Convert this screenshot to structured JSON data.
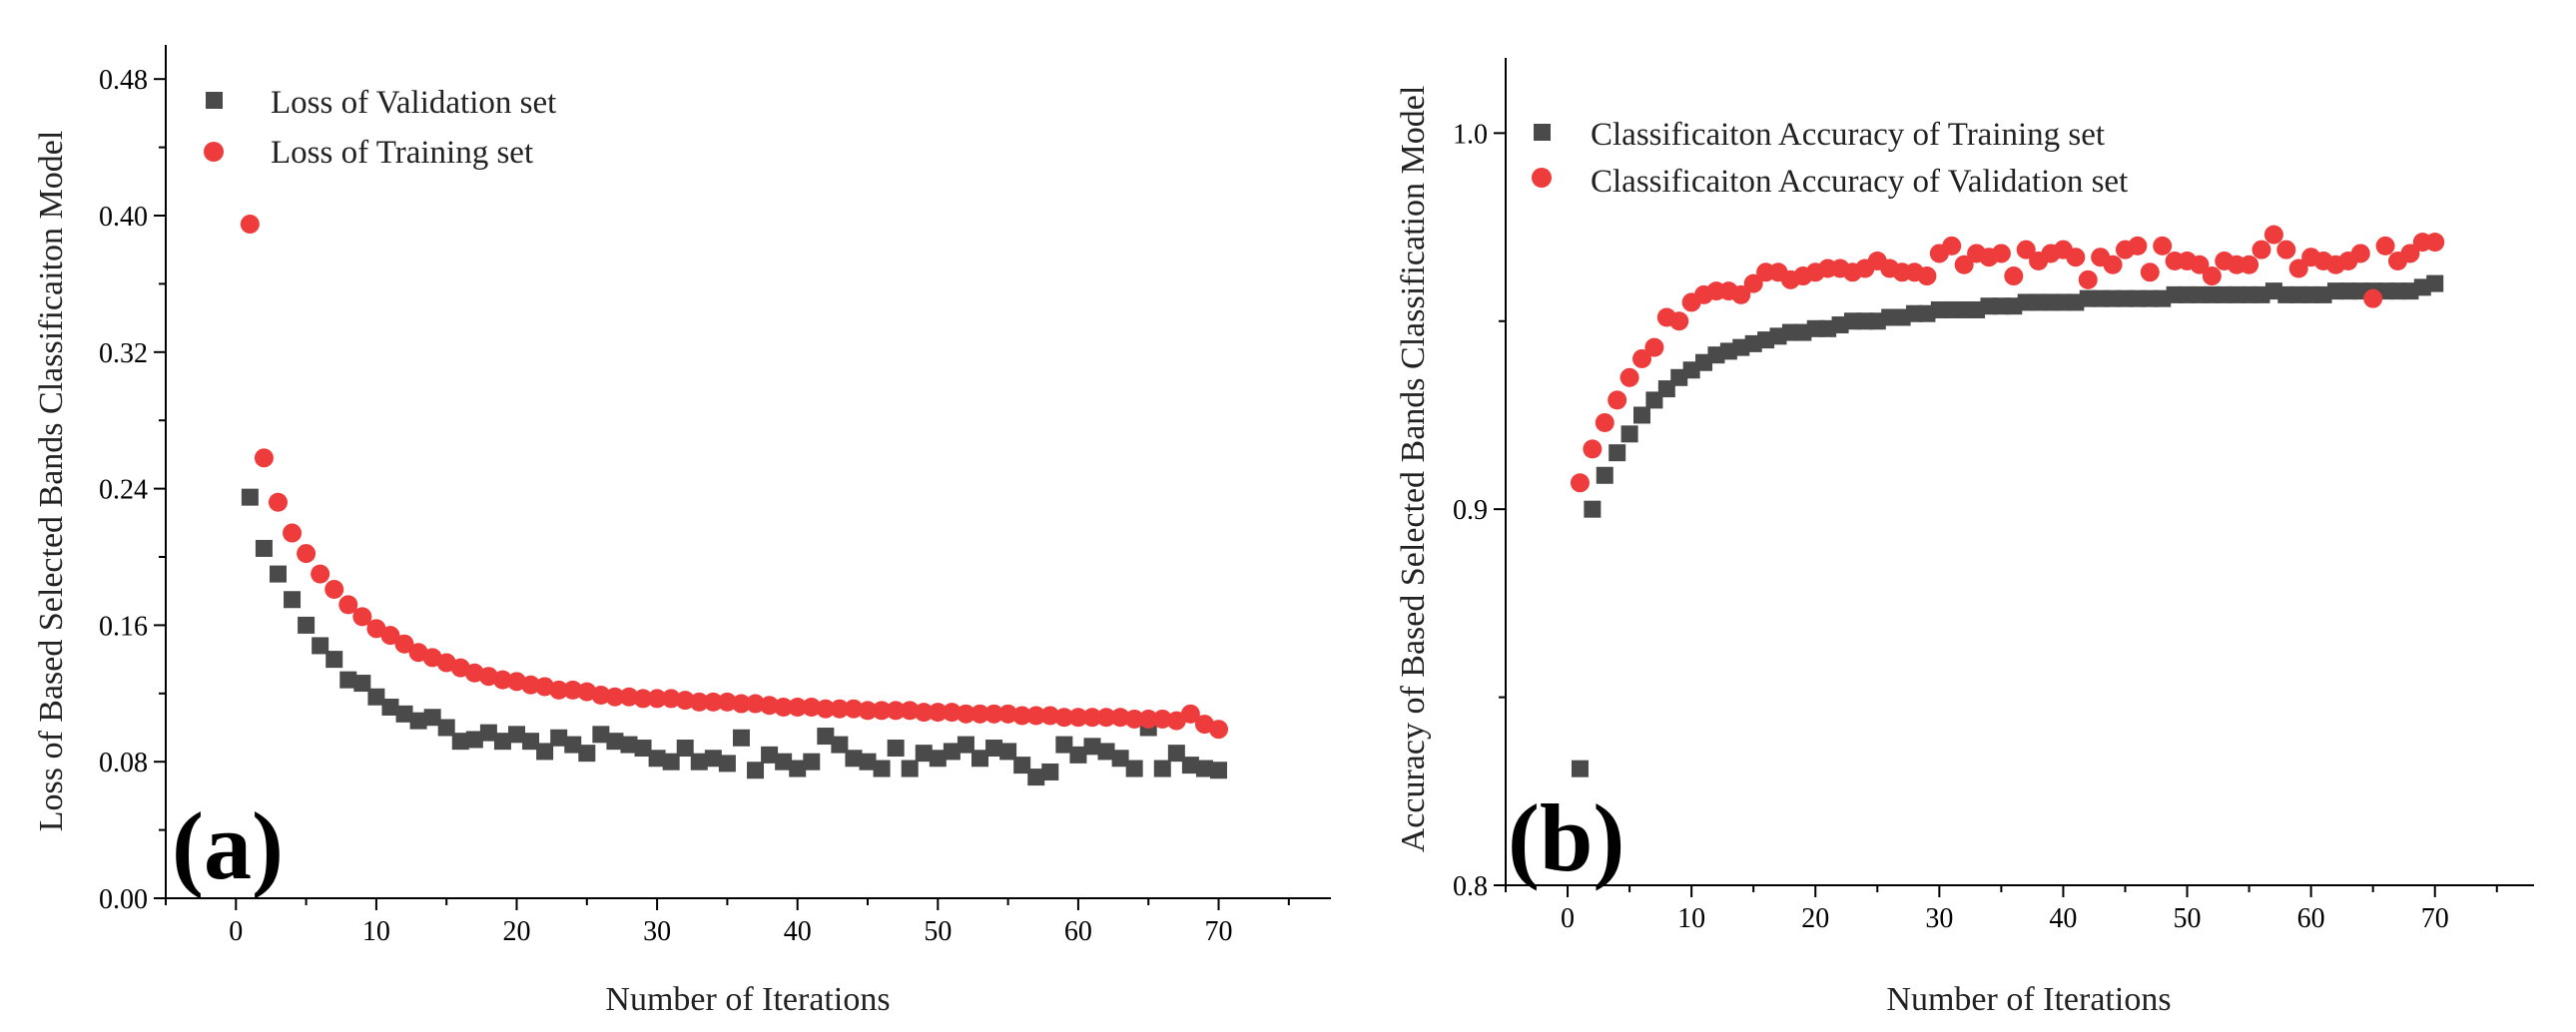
{
  "colors": {
    "validation_gray": "#4a4a4a",
    "training_red": "#ee3b3b"
  },
  "chart_data": [
    {
      "type": "scatter",
      "panel_label": "(a)",
      "xlabel": "Number of Iterations",
      "ylabel": "Loss of Based Selected Bands Classificaiton Model",
      "xlim": [
        -5,
        78
      ],
      "ylim": [
        0,
        0.5
      ],
      "xticks": [
        0,
        10,
        20,
        30,
        40,
        50,
        60,
        70
      ],
      "xtick_labels": [
        "0",
        "10",
        "20",
        "30",
        "40",
        "50",
        "60",
        "70"
      ],
      "yticks": [
        0,
        0.08,
        0.16,
        0.24,
        0.32,
        0.4,
        0.48
      ],
      "ytick_labels": [
        "0.00",
        "0.08",
        "0.16",
        "0.24",
        "0.32",
        "0.40",
        "0.48"
      ],
      "legend_position": "top-left",
      "series": [
        {
          "name": "Loss of Validation set",
          "marker": "square",
          "color": "#4a4a4a",
          "x": [
            1,
            2,
            3,
            4,
            5,
            6,
            7,
            8,
            9,
            10,
            11,
            12,
            13,
            14,
            15,
            16,
            17,
            18,
            19,
            20,
            21,
            22,
            23,
            24,
            25,
            26,
            27,
            28,
            29,
            30,
            31,
            32,
            33,
            34,
            35,
            36,
            37,
            38,
            39,
            40,
            41,
            42,
            43,
            44,
            45,
            46,
            47,
            48,
            49,
            50,
            51,
            52,
            53,
            54,
            55,
            56,
            57,
            58,
            59,
            60,
            61,
            62,
            63,
            64,
            65,
            66,
            67,
            68,
            69,
            70
          ],
          "values": [
            0.235,
            0.205,
            0.19,
            0.175,
            0.16,
            0.148,
            0.14,
            0.128,
            0.126,
            0.118,
            0.112,
            0.108,
            0.104,
            0.106,
            0.1,
            0.092,
            0.093,
            0.097,
            0.092,
            0.096,
            0.092,
            0.086,
            0.094,
            0.09,
            0.085,
            0.096,
            0.092,
            0.09,
            0.088,
            0.082,
            0.08,
            0.088,
            0.08,
            0.082,
            0.079,
            0.094,
            0.075,
            0.084,
            0.08,
            0.076,
            0.08,
            0.095,
            0.09,
            0.082,
            0.08,
            0.076,
            0.088,
            0.076,
            0.085,
            0.082,
            0.086,
            0.09,
            0.082,
            0.088,
            0.086,
            0.078,
            0.071,
            0.074,
            0.09,
            0.084,
            0.089,
            0.086,
            0.082,
            0.076,
            0.1,
            0.076,
            0.085,
            0.078,
            0.076,
            0.075
          ]
        },
        {
          "name": "Loss of Training set",
          "marker": "circle",
          "color": "#ee3b3b",
          "x": [
            1,
            2,
            3,
            4,
            5,
            6,
            7,
            8,
            9,
            10,
            11,
            12,
            13,
            14,
            15,
            16,
            17,
            18,
            19,
            20,
            21,
            22,
            23,
            24,
            25,
            26,
            27,
            28,
            29,
            30,
            31,
            32,
            33,
            34,
            35,
            36,
            37,
            38,
            39,
            40,
            41,
            42,
            43,
            44,
            45,
            46,
            47,
            48,
            49,
            50,
            51,
            52,
            53,
            54,
            55,
            56,
            57,
            58,
            59,
            60,
            61,
            62,
            63,
            64,
            65,
            66,
            67,
            68,
            69,
            70
          ],
          "values": [
            0.395,
            0.258,
            0.232,
            0.214,
            0.202,
            0.19,
            0.181,
            0.172,
            0.165,
            0.158,
            0.154,
            0.149,
            0.144,
            0.141,
            0.138,
            0.135,
            0.132,
            0.13,
            0.128,
            0.127,
            0.125,
            0.124,
            0.122,
            0.122,
            0.121,
            0.119,
            0.118,
            0.118,
            0.117,
            0.117,
            0.117,
            0.116,
            0.115,
            0.115,
            0.115,
            0.114,
            0.114,
            0.113,
            0.112,
            0.112,
            0.112,
            0.111,
            0.111,
            0.111,
            0.11,
            0.11,
            0.11,
            0.11,
            0.109,
            0.109,
            0.109,
            0.108,
            0.108,
            0.108,
            0.108,
            0.107,
            0.107,
            0.107,
            0.106,
            0.106,
            0.106,
            0.106,
            0.106,
            0.105,
            0.105,
            0.105,
            0.104,
            0.108,
            0.102,
            0.099
          ]
        }
      ]
    },
    {
      "type": "scatter",
      "panel_label": "(b)",
      "xlabel": "Number of Iterations",
      "ylabel": "Accuracy of Based Selected Bands Classification Model",
      "xlim": [
        -5,
        78
      ],
      "ylim": [
        0.8,
        1.02
      ],
      "xticks": [
        0,
        10,
        20,
        30,
        40,
        50,
        60,
        70
      ],
      "xtick_labels": [
        "0",
        "10",
        "20",
        "30",
        "40",
        "50",
        "60",
        "70"
      ],
      "yticks": [
        0.8,
        0.9,
        1.0
      ],
      "ytick_labels": [
        "0.8",
        "0.9",
        "1.0"
      ],
      "legend_position": "top-left",
      "series": [
        {
          "name": "Classificaiton Accuracy of Training set",
          "marker": "square",
          "color": "#4a4a4a",
          "x": [
            1,
            2,
            3,
            4,
            5,
            6,
            7,
            8,
            9,
            10,
            11,
            12,
            13,
            14,
            15,
            16,
            17,
            18,
            19,
            20,
            21,
            22,
            23,
            24,
            25,
            26,
            27,
            28,
            29,
            30,
            31,
            32,
            33,
            34,
            35,
            36,
            37,
            38,
            39,
            40,
            41,
            42,
            43,
            44,
            45,
            46,
            47,
            48,
            49,
            50,
            51,
            52,
            53,
            54,
            55,
            56,
            57,
            58,
            59,
            60,
            61,
            62,
            63,
            64,
            65,
            66,
            67,
            68,
            69,
            70
          ],
          "values": [
            0.831,
            0.9,
            0.909,
            0.915,
            0.92,
            0.925,
            0.929,
            0.932,
            0.935,
            0.937,
            0.939,
            0.941,
            0.942,
            0.943,
            0.944,
            0.945,
            0.946,
            0.947,
            0.947,
            0.948,
            0.948,
            0.949,
            0.95,
            0.95,
            0.95,
            0.951,
            0.951,
            0.952,
            0.952,
            0.953,
            0.953,
            0.953,
            0.953,
            0.954,
            0.954,
            0.954,
            0.955,
            0.955,
            0.955,
            0.955,
            0.955,
            0.956,
            0.956,
            0.956,
            0.956,
            0.956,
            0.956,
            0.956,
            0.957,
            0.957,
            0.957,
            0.957,
            0.957,
            0.957,
            0.957,
            0.957,
            0.958,
            0.957,
            0.957,
            0.957,
            0.957,
            0.958,
            0.958,
            0.958,
            0.958,
            0.958,
            0.958,
            0.958,
            0.959,
            0.96
          ]
        },
        {
          "name": "Classificaiton Accuracy of Validation set",
          "marker": "circle",
          "color": "#ee3b3b",
          "x": [
            1,
            2,
            3,
            4,
            5,
            6,
            7,
            8,
            9,
            10,
            11,
            12,
            13,
            14,
            15,
            16,
            17,
            18,
            19,
            20,
            21,
            22,
            23,
            24,
            25,
            26,
            27,
            28,
            29,
            30,
            31,
            32,
            33,
            34,
            35,
            36,
            37,
            38,
            39,
            40,
            41,
            42,
            43,
            44,
            45,
            46,
            47,
            48,
            49,
            50,
            51,
            52,
            53,
            54,
            55,
            56,
            57,
            58,
            59,
            60,
            61,
            62,
            63,
            64,
            65,
            66,
            67,
            68,
            69,
            70
          ],
          "values": [
            0.907,
            0.916,
            0.923,
            0.929,
            0.935,
            0.94,
            0.943,
            0.951,
            0.95,
            0.955,
            0.957,
            0.958,
            0.958,
            0.957,
            0.96,
            0.963,
            0.963,
            0.961,
            0.962,
            0.963,
            0.964,
            0.964,
            0.963,
            0.964,
            0.966,
            0.964,
            0.963,
            0.963,
            0.962,
            0.968,
            0.97,
            0.965,
            0.968,
            0.967,
            0.968,
            0.962,
            0.969,
            0.966,
            0.968,
            0.969,
            0.967,
            0.961,
            0.967,
            0.965,
            0.969,
            0.97,
            0.963,
            0.97,
            0.966,
            0.966,
            0.965,
            0.962,
            0.966,
            0.965,
            0.965,
            0.969,
            0.973,
            0.969,
            0.964,
            0.967,
            0.966,
            0.965,
            0.966,
            0.968,
            0.956,
            0.97,
            0.966,
            0.968,
            0.971,
            0.971
          ]
        }
      ]
    }
  ]
}
